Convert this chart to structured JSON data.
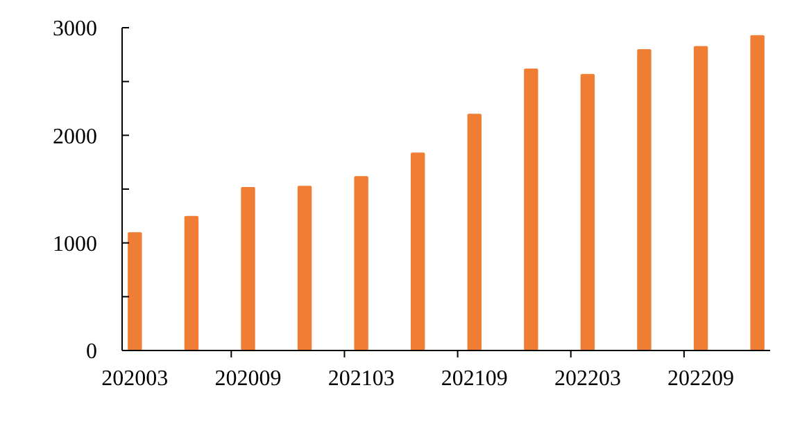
{
  "chart_data": {
    "type": "bar",
    "categories": [
      "202003",
      null,
      "202009",
      null,
      "202103",
      null,
      "202109",
      null,
      "202203",
      null,
      "202209",
      null
    ],
    "values": [
      1100,
      1250,
      1520,
      1530,
      1620,
      1840,
      2200,
      2620,
      2570,
      2800,
      2830,
      2930
    ],
    "color": "#ef7d33",
    "ylim": [
      0,
      3000
    ],
    "yticks": [
      0,
      {
        "value": 500,
        "label": null
      },
      1000,
      {
        "value": 1500,
        "label": null
      },
      2000,
      {
        "value": 2500,
        "label": null
      },
      3000
    ],
    "grid": false
  }
}
